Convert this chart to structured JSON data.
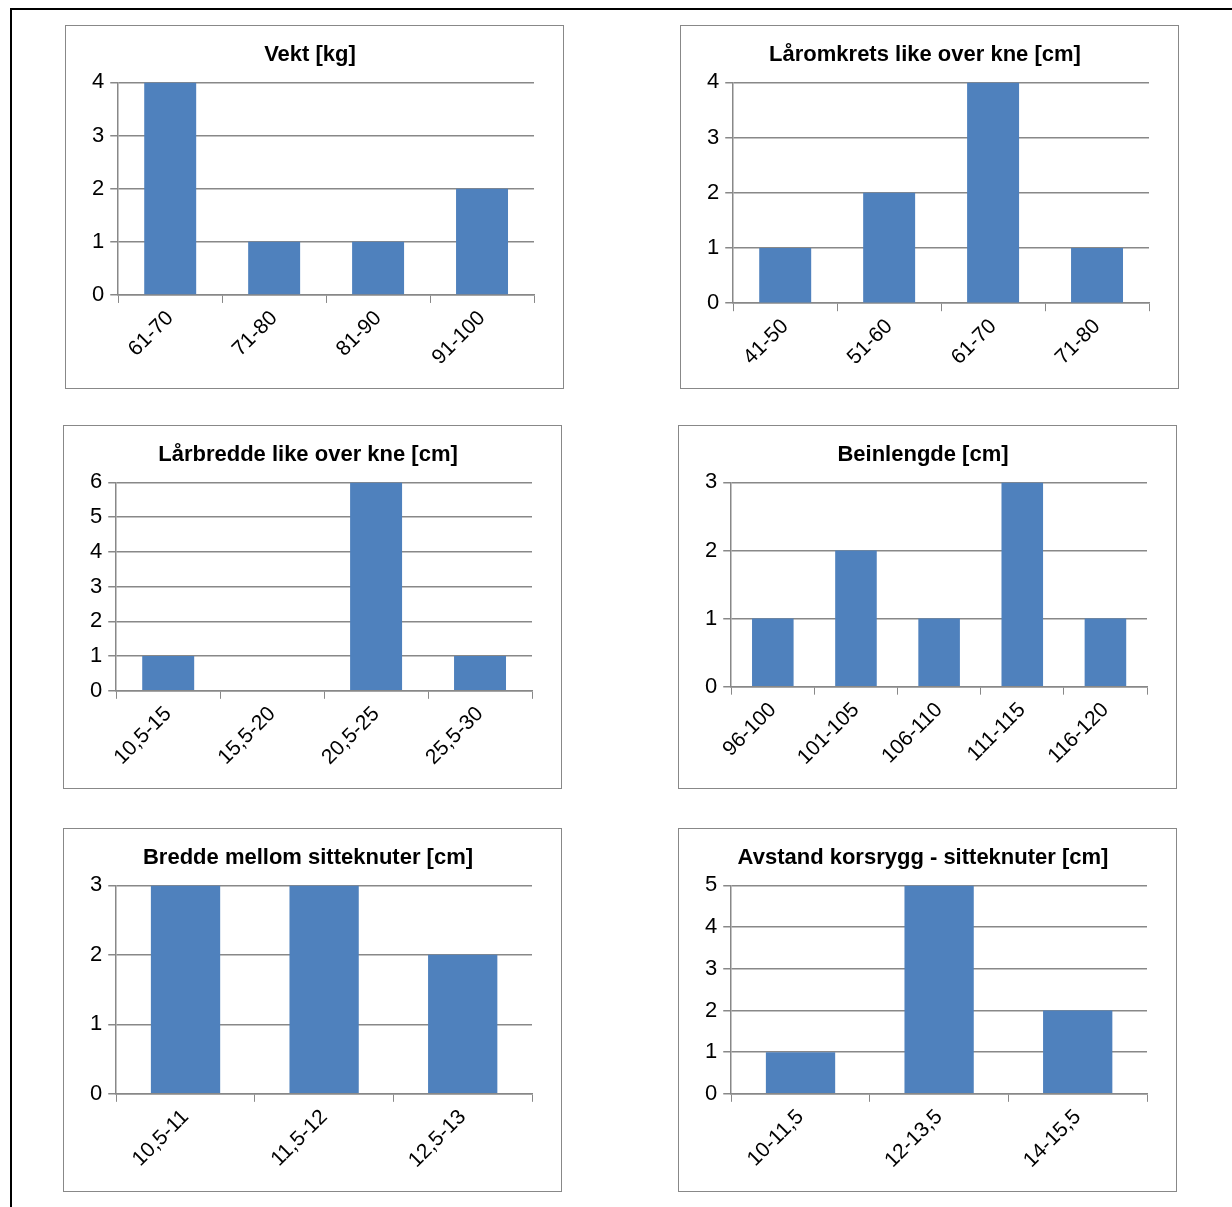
{
  "chart_data": [
    {
      "type": "bar",
      "title": "Vekt [kg]",
      "categories": [
        "61-70",
        "71-80",
        "81-90",
        "91-100"
      ],
      "values": [
        4,
        1,
        1,
        2
      ],
      "color": "#4f81bd",
      "ylim": [
        0,
        4
      ],
      "yticks": [
        0,
        1,
        2,
        3,
        4
      ],
      "grid": "y",
      "legend": false
    },
    {
      "type": "bar",
      "title": "Låromkrets like over kne [cm]",
      "categories": [
        "41-50",
        "51-60",
        "61-70",
        "71-80"
      ],
      "values": [
        1,
        2,
        4,
        1
      ],
      "color": "#4f81bd",
      "ylim": [
        0,
        4
      ],
      "yticks": [
        0,
        1,
        2,
        3,
        4
      ],
      "grid": "y",
      "legend": false
    },
    {
      "type": "bar",
      "title": "Lårbredde like over kne [cm]",
      "categories": [
        "10,5-15",
        "15,5-20",
        "20,5-25",
        "25,5-30"
      ],
      "values": [
        1,
        0,
        6,
        1
      ],
      "color": "#4f81bd",
      "ylim": [
        0,
        6
      ],
      "yticks": [
        0,
        1,
        2,
        3,
        4,
        5,
        6
      ],
      "grid": "y",
      "legend": false
    },
    {
      "type": "bar",
      "title": "Beinlengde [cm]",
      "categories": [
        "96-100",
        "101-105",
        "106-110",
        "111-115",
        "116-120"
      ],
      "values": [
        1,
        2,
        1,
        3,
        1
      ],
      "color": "#4f81bd",
      "ylim": [
        0,
        3
      ],
      "yticks": [
        0,
        1,
        2,
        3
      ],
      "grid": "y",
      "legend": false
    },
    {
      "type": "bar",
      "title": "Bredde mellom sitteknuter [cm]",
      "categories": [
        "10,5-11",
        "11,5-12",
        "12,5-13"
      ],
      "values": [
        3,
        3,
        2
      ],
      "color": "#4f81bd",
      "ylim": [
        0,
        3
      ],
      "yticks": [
        0,
        1,
        2,
        3
      ],
      "grid": "y",
      "legend": false
    },
    {
      "type": "bar",
      "title": "Avstand korsrygg - sitteknuter [cm]",
      "categories": [
        "10-11,5",
        "12-13,5",
        "14-15,5"
      ],
      "values": [
        1,
        5,
        2
      ],
      "color": "#4f81bd",
      "ylim": [
        0,
        5
      ],
      "yticks": [
        0,
        1,
        2,
        3,
        4,
        5
      ],
      "grid": "y",
      "legend": false
    }
  ]
}
